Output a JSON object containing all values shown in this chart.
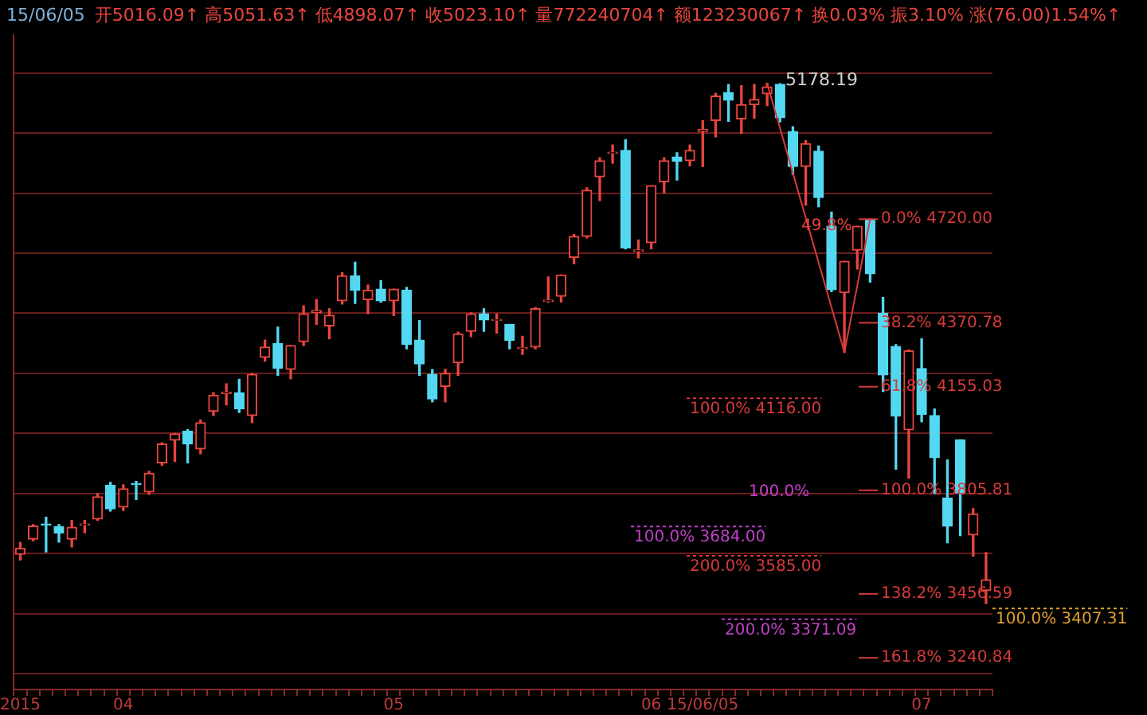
{
  "chart_data": {
    "type": "candlestick",
    "title": "15/06/05",
    "subtitle": "开5016.09↑ 高5051.63↑ 低4898.07↑ 收5023.10↑ 量772240704↑ 额123230067↑ 换0.03% 振3.10% 涨(76.00)1.54%↑",
    "categories": [
      "2015",
      null,
      null,
      null,
      null,
      null,
      null,
      null,
      "04",
      null,
      null,
      null,
      null,
      null,
      null,
      null,
      null,
      null,
      null,
      null,
      null,
      null,
      null,
      null,
      null,
      null,
      null,
      null,
      null,
      "05",
      null,
      null,
      null,
      null,
      null,
      null,
      null,
      null,
      null,
      null,
      null,
      null,
      null,
      null,
      null,
      null,
      null,
      null,
      null,
      "06",
      null,
      null,
      null,
      "15/06/05",
      null,
      null,
      null,
      null,
      null,
      null,
      null,
      null,
      null,
      null,
      null,
      null,
      null,
      null,
      null,
      null,
      "07",
      null,
      null,
      null,
      null,
      null
    ],
    "ohlc": [
      [
        3590,
        3630,
        3571,
        3610
      ],
      [
        3641,
        3690,
        3636,
        3685
      ],
      [
        3692,
        3715,
        3598,
        3688
      ],
      [
        3683,
        3690,
        3631,
        3662
      ],
      [
        3641,
        3704,
        3615,
        3681
      ],
      [
        3688,
        3704,
        3663,
        3692
      ],
      [
        3709,
        3795,
        3704,
        3784
      ],
      [
        3823,
        3832,
        3736,
        3743
      ],
      [
        3749,
        3824,
        3738,
        3811
      ],
      [
        3829,
        3836,
        3775,
        3825
      ],
      [
        3800,
        3870,
        3792,
        3863
      ],
      [
        3898,
        3966,
        3890,
        3962
      ],
      [
        3975,
        3998,
        3903,
        3996
      ],
      [
        4005,
        4010,
        3898,
        3962
      ],
      [
        3945,
        4043,
        3929,
        4034
      ],
      [
        4072,
        4135,
        4058,
        4126
      ],
      [
        4132,
        4165,
        4094,
        4137
      ],
      [
        4135,
        4180,
        4068,
        4081
      ],
      [
        4058,
        4200,
        4034,
        4197
      ],
      [
        4254,
        4312,
        4241,
        4289
      ],
      [
        4300,
        4356,
        4193,
        4218
      ],
      [
        4214,
        4294,
        4182,
        4294
      ],
      [
        4307,
        4428,
        4294,
        4401
      ],
      [
        4405,
        4449,
        4365,
        4412
      ],
      [
        4360,
        4418,
        4317,
        4396
      ],
      [
        4445,
        4540,
        4434,
        4529
      ],
      [
        4529,
        4575,
        4436,
        4481
      ],
      [
        4449,
        4498,
        4401,
        4481
      ],
      [
        4484,
        4513,
        4440,
        4445
      ],
      [
        4445,
        4484,
        4395,
        4484
      ],
      [
        4481,
        4490,
        4283,
        4298
      ],
      [
        4312,
        4378,
        4193,
        4232
      ],
      [
        4197,
        4213,
        4104,
        4114
      ],
      [
        4156,
        4214,
        4104,
        4200
      ],
      [
        4236,
        4339,
        4193,
        4333
      ],
      [
        4342,
        4404,
        4324,
        4401
      ],
      [
        4401,
        4418,
        4342,
        4380
      ],
      [
        4378,
        4401,
        4336,
        4382
      ],
      [
        4365,
        4365,
        4283,
        4312
      ],
      [
        4283,
        4325,
        4264,
        4287
      ],
      [
        4289,
        4422,
        4283,
        4418
      ],
      [
        4443,
        4525,
        4440,
        4447
      ],
      [
        4460,
        4532,
        4441,
        4532
      ],
      [
        4591,
        4668,
        4570,
        4662
      ],
      [
        4662,
        4826,
        4657,
        4818
      ],
      [
        4863,
        4927,
        4783,
        4917
      ],
      [
        4942,
        4970,
        4909,
        4946
      ],
      [
        4952,
        4988,
        4620,
        4623
      ],
      [
        4612,
        4650,
        4590,
        4616
      ],
      [
        4641,
        4833,
        4620,
        4833
      ],
      [
        4846,
        4927,
        4809,
        4917
      ],
      [
        4930,
        4944,
        4852,
        4915
      ],
      [
        4917,
        4970,
        4900,
        4952
      ],
      [
        5016.09,
        5051.63,
        4898.07,
        5023.1
      ],
      [
        5053,
        5144,
        4998,
        5135
      ],
      [
        5147,
        5174,
        5050,
        5121
      ],
      [
        5058,
        5170,
        5010,
        5106
      ],
      [
        5106,
        5174,
        5060,
        5124
      ],
      [
        5143,
        5178.19,
        5103,
        5166
      ],
      [
        5175,
        5177,
        5048,
        5062
      ],
      [
        5016,
        5032,
        4871,
        4898
      ],
      [
        4898,
        4985,
        4767,
        4975
      ],
      [
        4949,
        4967,
        4762,
        4793
      ],
      [
        4696,
        4744,
        4476,
        4482
      ],
      [
        4472,
        4578,
        4271,
        4578
      ],
      [
        4616,
        4696,
        4552,
        4696
      ],
      [
        4717,
        4720,
        4508,
        4536
      ],
      [
        4403,
        4456,
        4139,
        4195
      ],
      [
        4291,
        4297,
        3877,
        4056
      ],
      [
        4010,
        4279,
        3847,
        4276
      ],
      [
        4216,
        4317,
        4037,
        4062
      ],
      [
        4058,
        4080,
        3795,
        3916
      ],
      [
        3779,
        3908,
        3629,
        3685
      ],
      [
        3976,
        3976,
        3653,
        3797
      ],
      [
        3655,
        3744,
        3584,
        3726
      ],
      [
        3468,
        3596,
        3424,
        3504
      ]
    ],
    "series": [
      {
        "type": "line",
        "color": "#d83a3a",
        "values": [
          null,
          null,
          null,
          null,
          null,
          null,
          null,
          null,
          null,
          null,
          null,
          null,
          null,
          null,
          null,
          null,
          null,
          null,
          null,
          null,
          null,
          null,
          null,
          null,
          null,
          null,
          null,
          null,
          null,
          null,
          null,
          null,
          null,
          null,
          null,
          null,
          null,
          null,
          null,
          null,
          null,
          null,
          null,
          null,
          null,
          null,
          null,
          null,
          null,
          null,
          null,
          null,
          null,
          null,
          null,
          null,
          null,
          null,
          5178,
          null,
          null,
          null,
          null,
          null,
          4271,
          null,
          4720,
          null,
          null,
          null,
          null,
          null,
          null,
          null,
          null,
          null
        ]
      }
    ],
    "ylim": [
      3134,
      5341
    ],
    "yticks": [
      {
        "value": 5213,
        "label": null
      },
      {
        "value": 5010,
        "label": null
      },
      {
        "value": 4808,
        "label": null
      },
      {
        "value": 4605,
        "label": null
      },
      {
        "value": 4403,
        "label": null
      },
      {
        "value": 4200,
        "label": null
      },
      {
        "value": 3998,
        "label": null
      },
      {
        "value": 3795,
        "label": null
      },
      {
        "value": 3593,
        "label": null
      },
      {
        "value": 3390,
        "label": null
      },
      {
        "value": 3188,
        "label": null
      }
    ],
    "grid": "y",
    "legend": false,
    "tick_labels": "x",
    "ref_lines": [
      {
        "axis": "y",
        "value": 4720,
        "label": "0.0% 4720.00",
        "color": "#d83a3a",
        "line_style": "solid"
      },
      {
        "axis": "y",
        "value": 4370.78,
        "label": "38.2% 4370.78",
        "color": "#d83a3a",
        "line_style": "solid"
      },
      {
        "axis": "y",
        "value": 4155.03,
        "label": "61.8% 4155.03",
        "color": "#d83a3a",
        "line_style": "solid"
      },
      {
        "axis": "y",
        "value": 3805.81,
        "label": "100.0% 3805.81",
        "color": "#d83a3a",
        "line_style": "solid"
      },
      {
        "axis": "y",
        "value": 3456.59,
        "label": "138.2% 3456.59",
        "color": "#d83a3a",
        "line_style": "solid"
      },
      {
        "axis": "y",
        "value": 3240.84,
        "label": "161.8% 3240.84",
        "color": "#d83a3a",
        "line_style": "solid"
      },
      {
        "axis": "y",
        "value": 4116,
        "label": "100.0% 4116.00",
        "color": "#d83a3a",
        "line_style": "dotted"
      },
      {
        "axis": "y",
        "value": 3585,
        "label": "200.0% 3585.00",
        "color": "#d83a3a",
        "line_style": "dotted"
      },
      {
        "axis": "y",
        "value": 3684,
        "label": "100.0% 3684.00",
        "color": "#c040c8",
        "line_style": "dotted"
      },
      {
        "axis": "y",
        "value": 3371.09,
        "label": "200.0% 3371.09",
        "color": "#c040c8",
        "line_style": "dotted"
      },
      {
        "axis": "y",
        "value": 3407.31,
        "label": "100.0% 3407.31",
        "color": "#e0a030",
        "line_style": "dotted"
      }
    ],
    "annotations": [
      "5178.19",
      "49.8%",
      "100.0%"
    ]
  }
}
